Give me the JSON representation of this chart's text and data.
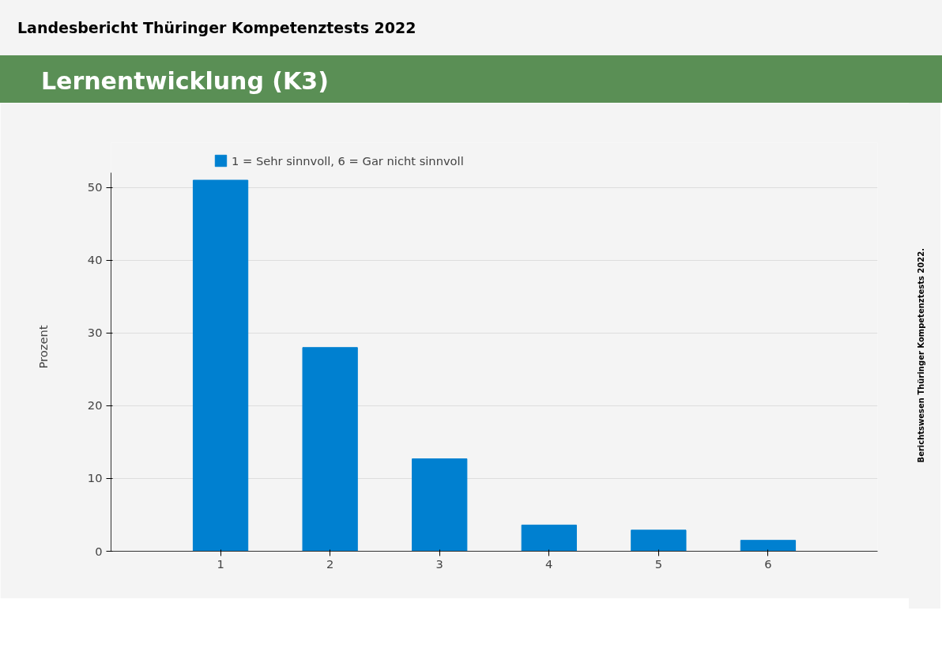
{
  "chart_data": {
    "type": "bar",
    "title": "Landesbericht Thüringer Kompetenztests 2022",
    "subtitle": "Lernentwicklung (K3)",
    "ylabel": "Prozent",
    "annotations": [
      "Berichtswesen Thüringer Kompetenztests 2022."
    ],
    "categories": [
      "1",
      "2",
      "3",
      "4",
      "5",
      "6"
    ],
    "series": [
      {
        "name": "1 = Sehr sinnvoll, 6 = Gar nicht sinnvoll",
        "color": "#0080d0",
        "values": [
          51.0,
          28.0,
          12.7,
          3.6,
          2.9,
          1.5
        ]
      }
    ],
    "ylim": [
      0,
      52
    ],
    "yticks": [
      0,
      10,
      20,
      30,
      40,
      50
    ],
    "grid": "y",
    "legend": "top"
  }
}
